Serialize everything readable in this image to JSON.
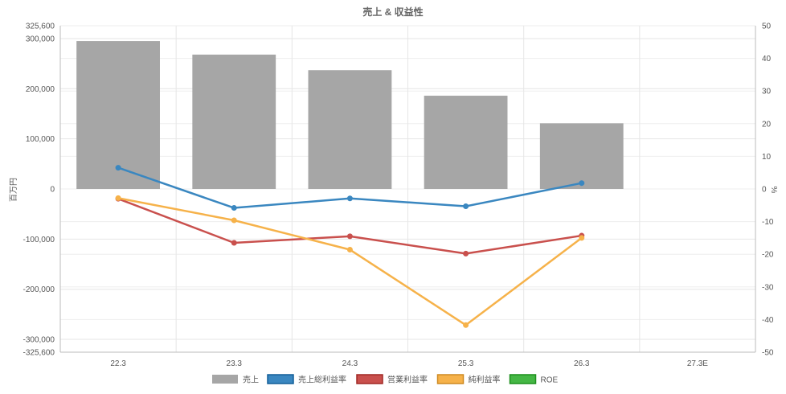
{
  "chart_data": {
    "type": "bar",
    "title": "売上 & 収益性",
    "categories": [
      "22.3",
      "23.3",
      "24.3",
      "25.3",
      "26.3",
      "27.3E"
    ],
    "left_axis": {
      "label": "百万円",
      "range": [
        -325600,
        325600
      ],
      "ticks": [
        -325600,
        -300000,
        -200000,
        -100000,
        0,
        100000,
        200000,
        300000,
        325600
      ],
      "tick_labels": [
        "-325,600",
        "-300,000",
        "-200,000",
        "-100,000",
        "0",
        "100,000",
        "200,000",
        "300,000",
        "325,600"
      ]
    },
    "right_axis": {
      "label": "%",
      "range": [
        -50,
        50
      ],
      "ticks": [
        -50,
        -40,
        -30,
        -20,
        -10,
        0,
        10,
        20,
        30,
        40,
        50
      ],
      "tick_labels": [
        "-50",
        "-40",
        "-30",
        "-20",
        "-10",
        "0",
        "10",
        "20",
        "30",
        "40",
        "50"
      ]
    },
    "grid": true,
    "legend_position": "bottom",
    "bar_series": {
      "name": "売上",
      "color": "#a6a6a6",
      "values": [
        295000,
        268000,
        237000,
        186000,
        131000,
        null
      ]
    },
    "line_series": [
      {
        "name": "売上総利益率",
        "color": "#3a87c0",
        "values": [
          6.5,
          -5.8,
          -2.9,
          -5.3,
          1.8,
          null
        ]
      },
      {
        "name": "営業利益率",
        "color": "#c9504d",
        "values": [
          -3.0,
          -16.5,
          -14.5,
          -19.8,
          -14.3,
          null
        ]
      },
      {
        "name": "純利益率",
        "color": "#f6b24a",
        "values": [
          -2.8,
          -9.6,
          -18.6,
          -41.7,
          -15.0,
          null
        ]
      },
      {
        "name": "ROE",
        "color": "#45b745",
        "values": [
          null,
          null,
          null,
          null,
          null,
          null
        ]
      }
    ]
  }
}
